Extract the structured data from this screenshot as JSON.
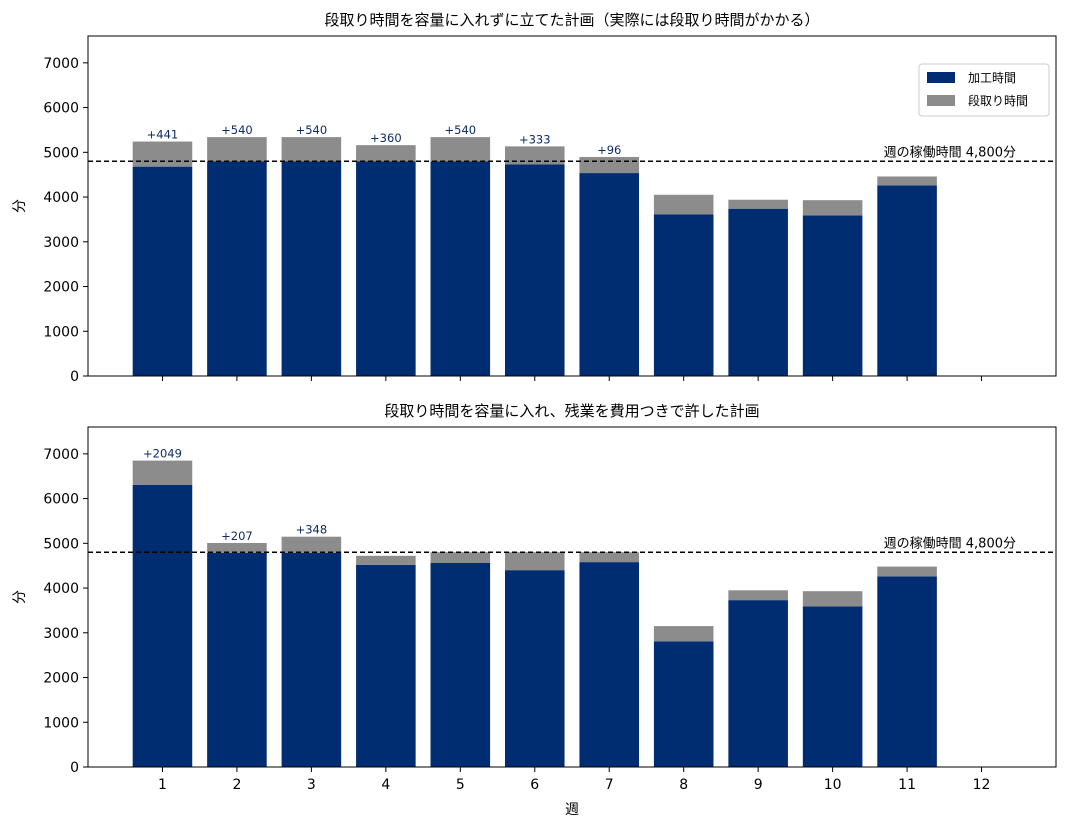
{
  "colors": {
    "processing": "#002d72",
    "setup": "#8c8c8c",
    "reference_line": "#000000",
    "annotation": "#0d2d66"
  },
  "legend": {
    "processing": "加工時間",
    "setup": "段取り時間",
    "placement": "upper right"
  },
  "reference": {
    "value": 4800,
    "label": "週の稼働時間 4,800分",
    "style": "dashed"
  },
  "chart_data": [
    {
      "type": "bar",
      "stacked": true,
      "title": "段取り時間を容量に入れずに立てた計画（実際には段取り時間がかかる）",
      "xlabel": "",
      "ylabel": "分",
      "ylim": [
        0,
        7600
      ],
      "yticks": [
        0,
        1000,
        2000,
        3000,
        4000,
        5000,
        6000,
        7000
      ],
      "categories": [
        "1",
        "2",
        "3",
        "4",
        "5",
        "6",
        "7",
        "8",
        "9",
        "10",
        "11",
        "12"
      ],
      "series": [
        {
          "name": "加工時間",
          "values": [
            4680,
            4800,
            4800,
            4800,
            4800,
            4733,
            4536,
            3610,
            3740,
            3590,
            4260,
            0
          ]
        },
        {
          "name": "段取り時間",
          "values": [
            561,
            540,
            540,
            360,
            540,
            400,
            360,
            440,
            200,
            340,
            200,
            0
          ]
        }
      ],
      "annotations": [
        "+441",
        "+540",
        "+540",
        "+360",
        "+540",
        "+333",
        "+96",
        "",
        "",
        "",
        "",
        ""
      ]
    },
    {
      "type": "bar",
      "stacked": true,
      "title": "段取り時間を容量に入れ、残業を費用つきで許した計画",
      "xlabel": "週",
      "ylabel": "分",
      "ylim": [
        0,
        7600
      ],
      "yticks": [
        0,
        1000,
        2000,
        3000,
        4000,
        5000,
        6000,
        7000
      ],
      "categories": [
        "1",
        "2",
        "3",
        "4",
        "5",
        "6",
        "7",
        "8",
        "9",
        "10",
        "11",
        "12"
      ],
      "series": [
        {
          "name": "加工時間",
          "values": [
            6309,
            4787,
            4788,
            4520,
            4560,
            4400,
            4580,
            2810,
            3730,
            3590,
            4260,
            0
          ]
        },
        {
          "name": "段取り時間",
          "values": [
            540,
            220,
            360,
            200,
            240,
            400,
            220,
            340,
            220,
            340,
            220,
            0
          ]
        }
      ],
      "annotations": [
        "+2049",
        "+207",
        "+348",
        "",
        "",
        "",
        "",
        "",
        "",
        "",
        "",
        ""
      ]
    }
  ]
}
